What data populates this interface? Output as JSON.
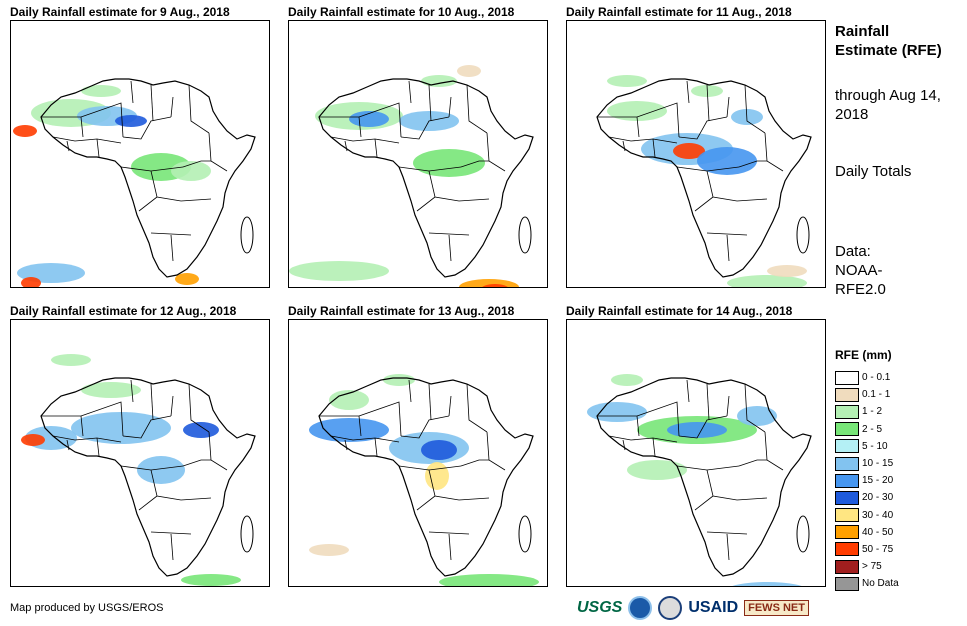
{
  "panels": [
    {
      "title": "Daily Rainfall estimate for 9 Aug., 2018"
    },
    {
      "title": "Daily Rainfall estimate for 10 Aug., 2018"
    },
    {
      "title": "Daily Rainfall estimate for 11 Aug., 2018"
    },
    {
      "title": "Daily Rainfall estimate for 12 Aug., 2018"
    },
    {
      "title": "Daily Rainfall estimate for 13 Aug., 2018"
    },
    {
      "title": "Daily Rainfall estimate for 14 Aug., 2018"
    }
  ],
  "sidebar": {
    "title": "Rainfall Estimate (RFE)",
    "through": "through Aug 14, 2018",
    "totals": "Daily Totals",
    "data_source": "Data: NOAA-RFE2.0"
  },
  "legend": {
    "title": "RFE (mm)",
    "items": [
      {
        "label": "0 - 0.1",
        "color": "#ffffff"
      },
      {
        "label": "0.1 - 1",
        "color": "#f0dcbe"
      },
      {
        "label": "1 - 2",
        "color": "#b4f0b4"
      },
      {
        "label": "2 - 5",
        "color": "#78e678"
      },
      {
        "label": "5 - 10",
        "color": "#b4f0f5"
      },
      {
        "label": "10 - 15",
        "color": "#82c3f0"
      },
      {
        "label": "15 - 20",
        "color": "#4696f0"
      },
      {
        "label": "20 - 30",
        "color": "#1e5adc"
      },
      {
        "label": "30 - 40",
        "color": "#ffe682"
      },
      {
        "label": "40 - 50",
        "color": "#ffa000"
      },
      {
        "label": "50 - 75",
        "color": "#ff3c00"
      },
      {
        "label": "> 75",
        "color": "#a01e1e"
      },
      {
        "label": "No Data",
        "color": "#969696"
      }
    ]
  },
  "footer": {
    "credit": "Map produced by USGS/EROS",
    "logos": {
      "usgs": "USGS",
      "usaid": "USAID",
      "fews": "FEWS NET"
    }
  }
}
